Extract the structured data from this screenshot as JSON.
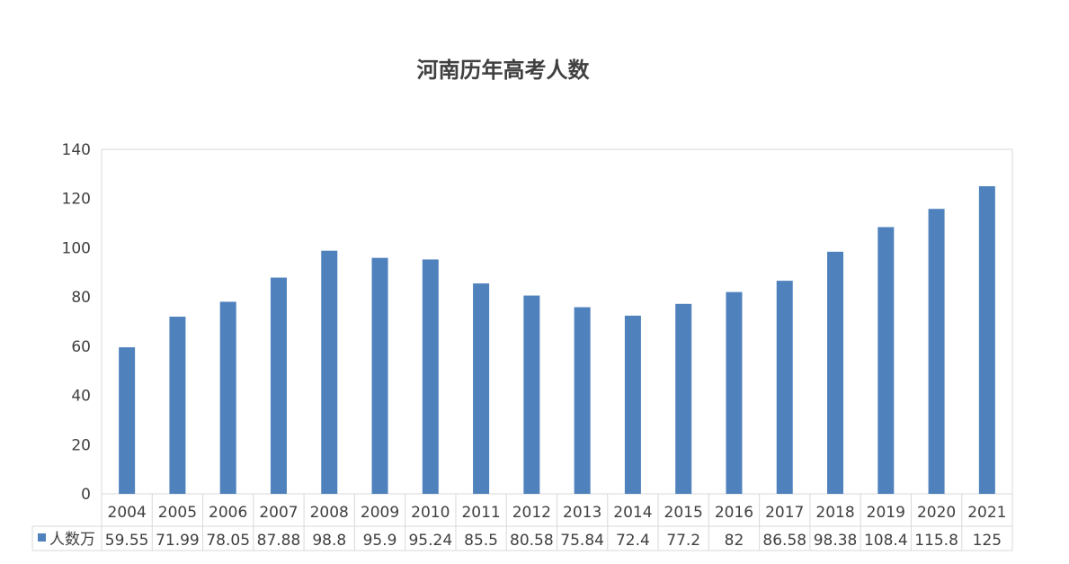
{
  "chart_data": {
    "type": "bar",
    "title": "河南历年高考人数",
    "categories": [
      "2004",
      "2005",
      "2006",
      "2007",
      "2008",
      "2009",
      "2010",
      "2011",
      "2012",
      "2013",
      "2014",
      "2015",
      "2016",
      "2017",
      "2018",
      "2019",
      "2020",
      "2021"
    ],
    "series": [
      {
        "name": "人数万",
        "values": [
          59.55,
          71.99,
          78.05,
          87.88,
          98.8,
          95.9,
          95.24,
          85.5,
          80.58,
          75.84,
          72.4,
          77.2,
          82,
          86.58,
          98.38,
          108.4,
          115.8,
          125
        ],
        "value_labels": [
          "59.55",
          "71.99",
          "78.05",
          "87.88",
          "98.8",
          "95.9",
          "95.24",
          "85.5",
          "80.58",
          "75.84",
          "72.4",
          "77.2",
          "82",
          "86.58",
          "98.38",
          "108.4",
          "115.8",
          "125"
        ],
        "color": "#4f81bd"
      }
    ],
    "ylim": [
      0,
      140
    ],
    "yticks": [
      "0",
      "20",
      "40",
      "60",
      "80",
      "100",
      "120",
      "140"
    ],
    "grid": false,
    "legend": "data-table",
    "colors": {
      "bar": "#4f81bd",
      "axis_text": "#404040",
      "border": "#d9d9d9"
    }
  }
}
